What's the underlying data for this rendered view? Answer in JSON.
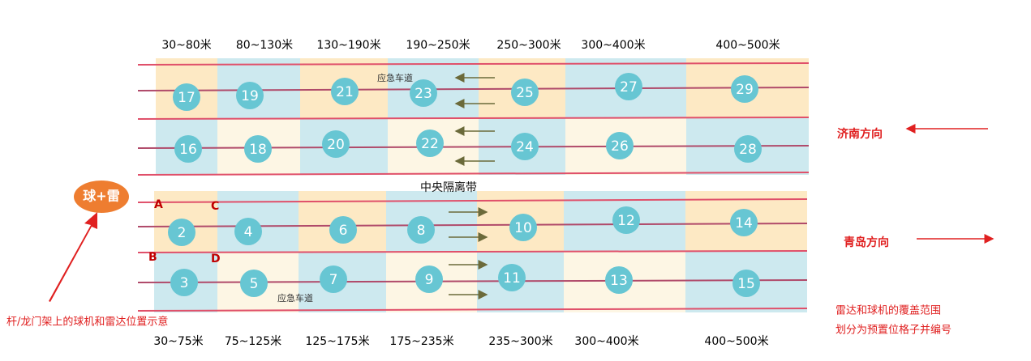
{
  "top_ranges": [
    "30~80米",
    "80~130米",
    "130~190米",
    "190~250米",
    "250~300米",
    "300~400米",
    "400~500米"
  ],
  "bottom_ranges": [
    "30~75米",
    "75~125米",
    "125~175米",
    "175~235米",
    "235~300米",
    "300~400米",
    "400~500米"
  ],
  "upper_lane1": [
    17,
    19,
    21,
    23,
    25,
    27,
    29
  ],
  "upper_lane2": [
    16,
    18,
    20,
    22,
    24,
    26,
    28
  ],
  "lower_lane1": [
    2,
    4,
    6,
    8,
    10,
    12,
    14
  ],
  "lower_lane2": [
    3,
    5,
    7,
    9,
    11,
    13,
    15
  ],
  "emergency_lane_top": "应急车道",
  "emergency_lane_bottom": "应急车道",
  "median": "中央隔离带",
  "direction_jinan": "济南方向",
  "direction_qingdao": "青岛方向",
  "device": "球+雷",
  "corners": [
    "A",
    "C",
    "B",
    "D"
  ],
  "caption_left": "杆/龙门架上的球机和雷达位置示意",
  "caption_right": [
    "雷达和球机的覆盖范围",
    "划分为预置位格子并编号"
  ]
}
